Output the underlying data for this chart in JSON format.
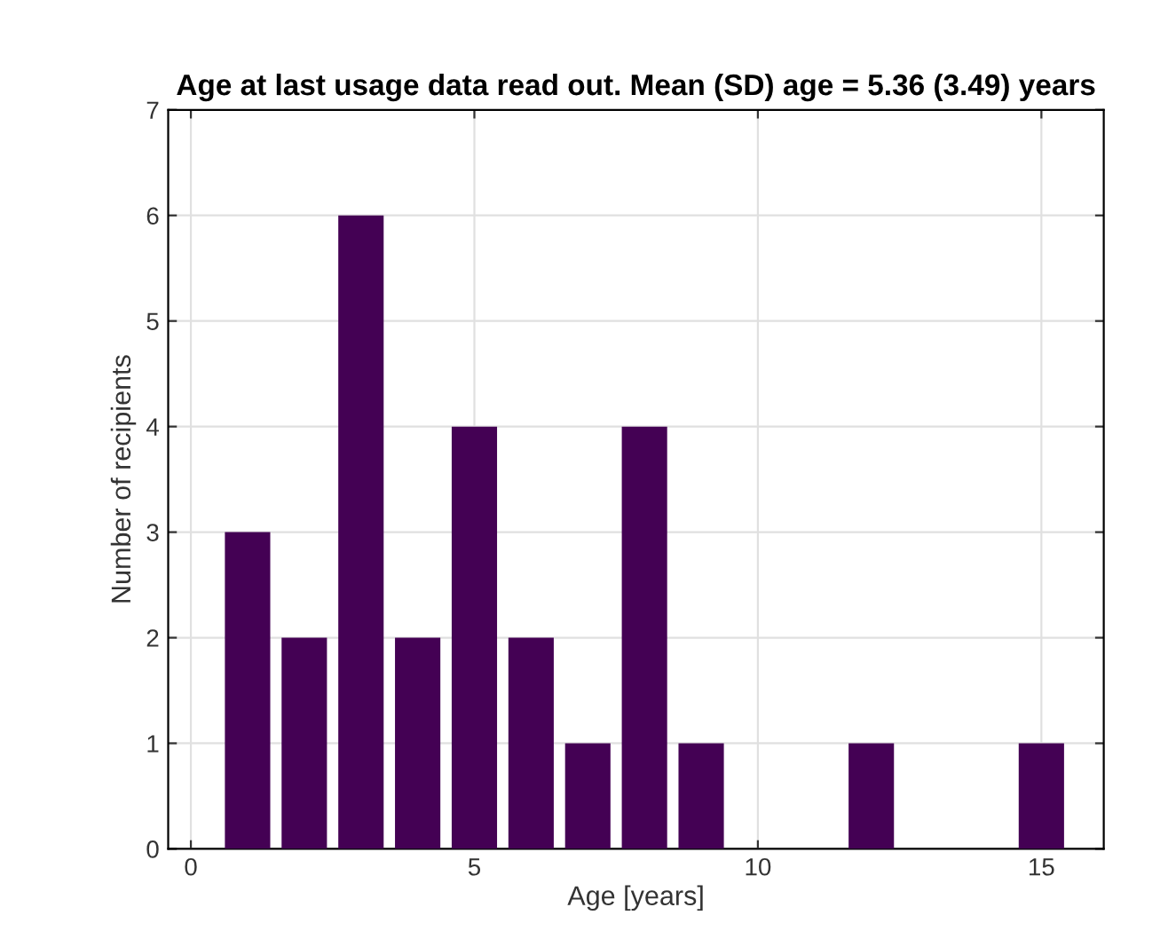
{
  "chart_data": {
    "type": "bar",
    "title": "Age at last usage data read out. Mean (SD) age = 5.36 (3.49) years",
    "xlabel": "Age [years]",
    "ylabel": "Number of recipients",
    "x": [
      1,
      2,
      3,
      4,
      5,
      6,
      7,
      8,
      9,
      12,
      15
    ],
    "values": [
      3,
      2,
      6,
      2,
      4,
      2,
      1,
      4,
      1,
      1,
      1
    ],
    "color": "#440154",
    "xlim": [
      -0.4,
      16.1
    ],
    "xticks": [
      0,
      5,
      10,
      15
    ],
    "ylim": [
      0,
      7
    ],
    "yticks": [
      0,
      1,
      2,
      3,
      4,
      5,
      6,
      7
    ],
    "grid": true
  }
}
